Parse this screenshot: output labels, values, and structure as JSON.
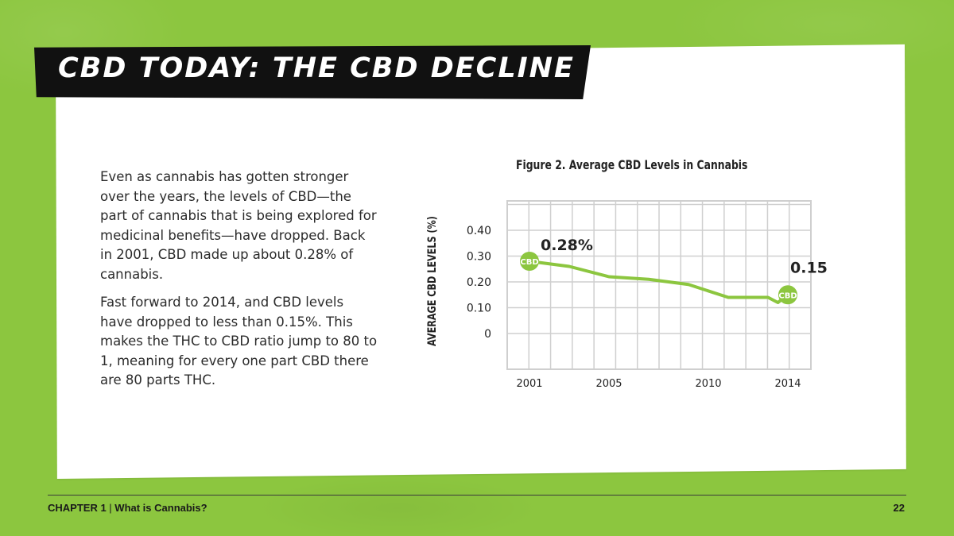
{
  "slide": {
    "title": "CBD TODAY: THE CBD DECLINE",
    "paragraphs": [
      "Even as cannabis has gotten stronger over the years, the levels of CBD—the part of cannabis that is being explored for medicinal benefits—have dropped. Back in 2001, CBD made up about 0.28% of cannabis.",
      "Fast forward to 2014, and CBD levels have dropped to less than 0.15%. This makes the THC to CBD ratio jump to 80 to 1, meaning for every one part CBD there are 80 parts THC."
    ]
  },
  "footer": {
    "chapter": "CHAPTER 1",
    "separator": " | ",
    "section": "What is Cannabis?",
    "page_number": "22"
  },
  "colors": {
    "background": "#8cc63f",
    "line": "#8cc63f",
    "grid": "#cfcfcf",
    "banner": "#111111"
  },
  "chart_data": {
    "type": "line",
    "title": "Figure 2. Average CBD Levels in Cannabis",
    "xlabel": "",
    "ylabel": "AVERAGE CBD LEVELS (%)",
    "x_ticks": [
      "2001",
      "2005",
      "2010",
      "2014"
    ],
    "y_ticks": [
      "0.40",
      "0.30",
      "0.20",
      "0.10",
      "0"
    ],
    "ylim": [
      0,
      0.4
    ],
    "xlim": [
      2001,
      2014
    ],
    "grid": true,
    "series": [
      {
        "marker_label": "CBD",
        "x": [
          2001,
          2003,
          2005,
          2007,
          2009,
          2011,
          2012,
          2013,
          2013.5,
          2014
        ],
        "y": [
          0.28,
          0.26,
          0.22,
          0.21,
          0.19,
          0.14,
          0.14,
          0.14,
          0.12,
          0.15
        ]
      }
    ],
    "annotations": [
      {
        "x": 2001,
        "y": 0.28,
        "text": "0.28%"
      },
      {
        "x": 2014,
        "y": 0.15,
        "text": "0.15%"
      }
    ]
  }
}
